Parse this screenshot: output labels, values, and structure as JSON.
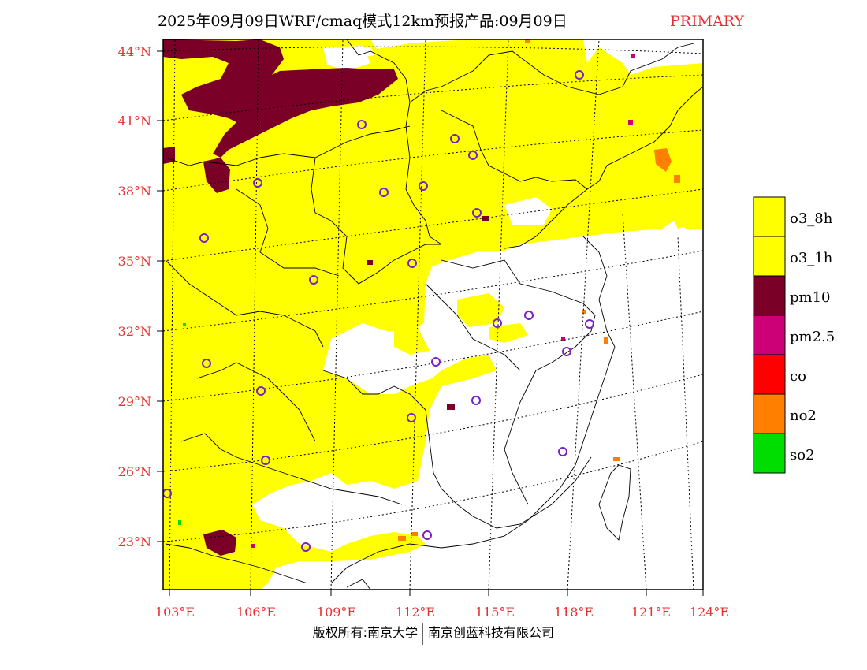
{
  "title": {
    "main": "2025年09月09日WRF/cmaq模式12km预报产品:09月09日",
    "tag": "PRIMARY"
  },
  "lat_labels": [
    "44°N",
    "41°N",
    "38°N",
    "35°N",
    "32°N",
    "29°N",
    "26°N",
    "23°N"
  ],
  "lon_labels": [
    "103°E",
    "106°E",
    "109°E",
    "112°E",
    "115°E",
    "118°E",
    "121°E",
    "124°E"
  ],
  "legend": [
    {
      "label": "o3_8h",
      "color": "#ffff00"
    },
    {
      "label": "o3_1h",
      "color": "#ffff00"
    },
    {
      "label": "pm10",
      "color": "#7a0028"
    },
    {
      "label": "pm2.5",
      "color": "#cc0077"
    },
    {
      "label": "co",
      "color": "#ff0000"
    },
    {
      "label": "no2",
      "color": "#ff7f00"
    },
    {
      "label": "so2",
      "color": "#00dd00"
    }
  ],
  "copyright": {
    "left": "版权所有:南京大学",
    "right": "南京创蓝科技有限公司"
  },
  "colors": {
    "o3": "#ffff00",
    "pm10": "#7a0028",
    "pm25": "#cc0077",
    "no2": "#ff7f00",
    "so2": "#00dd00",
    "city_marker": "#7a22c8",
    "label_red": "#e83030"
  }
}
